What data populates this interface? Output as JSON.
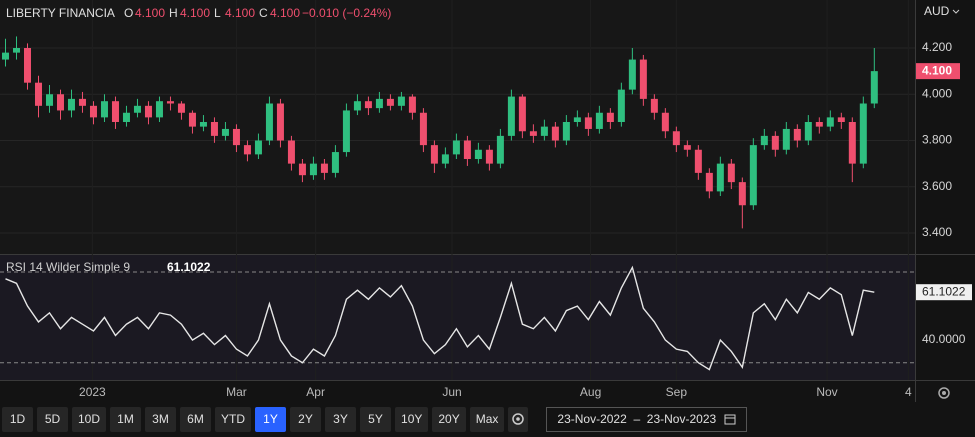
{
  "chart_data": [
    {
      "type": "candlestick",
      "title": "LIBERTY FINANCIA",
      "currency": "AUD",
      "ohlc": [
        {
          "label": "O",
          "value": "4.100"
        },
        {
          "label": "H",
          "value": "4.100"
        },
        {
          "label": "L",
          "value": "4.100"
        },
        {
          "label": "C",
          "value": "4.100"
        }
      ],
      "change": "−0.010 (−0.24%)",
      "up_color": "#2fbf80",
      "down_color": "#ef4f6e",
      "grid": true,
      "open": [
        4.15,
        4.18,
        4.2,
        4.05,
        3.95,
        4.0,
        3.93,
        3.98,
        3.95,
        3.9,
        3.97,
        3.88,
        3.92,
        3.95,
        3.9,
        3.97,
        3.96,
        3.92,
        3.86,
        3.88,
        3.82,
        3.85,
        3.78,
        3.74,
        3.8,
        3.96,
        3.8,
        3.7,
        3.65,
        3.7,
        3.66,
        3.75,
        3.93,
        3.97,
        3.94,
        3.98,
        3.95,
        3.99,
        3.92,
        3.78,
        3.7,
        3.74,
        3.8,
        3.72,
        3.76,
        3.7,
        3.82,
        3.99,
        3.84,
        3.82,
        3.86,
        3.8,
        3.88,
        3.9,
        3.85,
        3.92,
        3.88,
        4.02,
        4.15,
        3.98,
        3.92,
        3.84,
        3.78,
        3.76,
        3.66,
        3.58,
        3.7,
        3.62,
        3.52,
        3.78,
        3.82,
        3.76,
        3.85,
        3.8,
        3.88,
        3.86,
        3.9,
        3.88,
        3.7,
        3.96
      ],
      "high": [
        4.24,
        4.25,
        4.22,
        4.08,
        4.04,
        4.02,
        4.02,
        4.01,
        3.97,
        4.0,
        3.99,
        3.95,
        3.98,
        3.97,
        3.99,
        3.99,
        3.97,
        3.93,
        3.91,
        3.9,
        3.88,
        3.87,
        3.8,
        3.83,
        3.99,
        3.98,
        3.82,
        3.72,
        3.73,
        3.72,
        3.78,
        3.96,
        4.0,
        3.99,
        4.01,
        4.0,
        4.01,
        4.0,
        3.94,
        3.8,
        3.77,
        3.83,
        3.82,
        3.79,
        3.78,
        3.85,
        4.02,
        4.0,
        3.87,
        3.89,
        3.88,
        3.91,
        3.93,
        3.92,
        3.95,
        3.94,
        4.05,
        4.2,
        4.17,
        4.0,
        3.94,
        3.86,
        3.8,
        3.78,
        3.68,
        3.73,
        3.72,
        3.64,
        3.81,
        3.85,
        3.84,
        3.88,
        3.87,
        3.91,
        3.9,
        3.93,
        3.92,
        3.9,
        3.99,
        4.2
      ],
      "low": [
        4.12,
        4.15,
        4.02,
        3.9,
        3.92,
        3.89,
        3.9,
        3.92,
        3.87,
        3.88,
        3.85,
        3.86,
        3.9,
        3.87,
        3.88,
        3.93,
        3.89,
        3.83,
        3.84,
        3.79,
        3.8,
        3.75,
        3.71,
        3.72,
        3.78,
        3.77,
        3.67,
        3.62,
        3.63,
        3.63,
        3.64,
        3.73,
        3.91,
        3.91,
        3.92,
        3.93,
        3.93,
        3.89,
        3.75,
        3.66,
        3.68,
        3.72,
        3.69,
        3.7,
        3.67,
        3.68,
        3.8,
        3.81,
        3.79,
        3.8,
        3.77,
        3.78,
        3.86,
        3.82,
        3.83,
        3.85,
        3.86,
        4.0,
        3.95,
        3.89,
        3.81,
        3.75,
        3.73,
        3.63,
        3.55,
        3.56,
        3.59,
        3.42,
        3.5,
        3.76,
        3.73,
        3.74,
        3.77,
        3.78,
        3.83,
        3.84,
        3.85,
        3.62,
        3.68,
        3.94
      ],
      "close": [
        4.18,
        4.2,
        4.05,
        3.95,
        4.0,
        3.93,
        3.98,
        3.95,
        3.9,
        3.97,
        3.88,
        3.92,
        3.95,
        3.9,
        3.97,
        3.96,
        3.92,
        3.86,
        3.88,
        3.82,
        3.85,
        3.78,
        3.74,
        3.8,
        3.96,
        3.8,
        3.7,
        3.65,
        3.7,
        3.66,
        3.75,
        3.93,
        3.97,
        3.94,
        3.98,
        3.95,
        3.99,
        3.92,
        3.78,
        3.7,
        3.74,
        3.8,
        3.72,
        3.76,
        3.7,
        3.82,
        3.99,
        3.84,
        3.82,
        3.86,
        3.8,
        3.88,
        3.9,
        3.85,
        3.92,
        3.88,
        4.02,
        4.15,
        3.98,
        3.92,
        3.84,
        3.78,
        3.76,
        3.66,
        3.58,
        3.7,
        3.62,
        3.52,
        3.78,
        3.82,
        3.76,
        3.85,
        3.8,
        3.88,
        3.86,
        3.9,
        3.88,
        3.7,
        3.96,
        4.1
      ],
      "ylim": [
        3.3135,
        4.4076
      ],
      "yticks": [
        {
          "value": 3.4,
          "label": "3.400"
        },
        {
          "value": 3.6,
          "label": "3.600"
        },
        {
          "value": 3.8,
          "label": "3.800"
        },
        {
          "value": 4.0,
          "label": "4.000"
        },
        {
          "value": 4.2,
          "label": "4.200"
        }
      ],
      "xlim": [
        -0.5,
        82.7
      ],
      "xticks": [
        {
          "value": 7.9,
          "label": "2023"
        },
        {
          "value": 21,
          "label": "Mar"
        },
        {
          "value": 28.2,
          "label": "Apr"
        },
        {
          "value": 40.6,
          "label": "Jun"
        },
        {
          "value": 53.2,
          "label": "Aug"
        },
        {
          "value": 61,
          "label": "Sep"
        },
        {
          "value": 74.7,
          "label": "Nov"
        },
        {
          "value": 82.1,
          "label": "4"
        }
      ],
      "last_price": {
        "value": 4.1,
        "label": "4.100"
      }
    },
    {
      "type": "line",
      "title": "RSI 14 Wilder Simple 9",
      "color": "#e6e6e6",
      "values": [
        67,
        65,
        55,
        48,
        52,
        45,
        50,
        47,
        44,
        50,
        42,
        47,
        50,
        45,
        52,
        51,
        47,
        40,
        43,
        38,
        42,
        36,
        33,
        40,
        56,
        40,
        33,
        30,
        36,
        33,
        42,
        58,
        62,
        58,
        63,
        59,
        64,
        55,
        40,
        34,
        38,
        45,
        37,
        42,
        36,
        50,
        65,
        47,
        45,
        50,
        44,
        53,
        55,
        49,
        57,
        51,
        63,
        72,
        54,
        48,
        40,
        36,
        35,
        30,
        27,
        40,
        35,
        28,
        52,
        56,
        49,
        58,
        52,
        61,
        58,
        63,
        60,
        42,
        62,
        61.1022
      ],
      "ylim": [
        22.4,
        77.5
      ],
      "yticks": [
        {
          "value": 40,
          "label": "40.0000"
        }
      ],
      "levels": [
        30,
        70
      ],
      "last_value": {
        "value": 61.1022,
        "label": "61.1022"
      }
    }
  ],
  "toolbar": {
    "ranges": [
      "1D",
      "5D",
      "10D",
      "1M",
      "3M",
      "6M",
      "YTD",
      "1Y",
      "2Y",
      "3Y",
      "5Y",
      "10Y",
      "20Y",
      "Max"
    ],
    "active": "1Y",
    "date_range": "23-Nov-2022  –  23-Nov-2023"
  }
}
